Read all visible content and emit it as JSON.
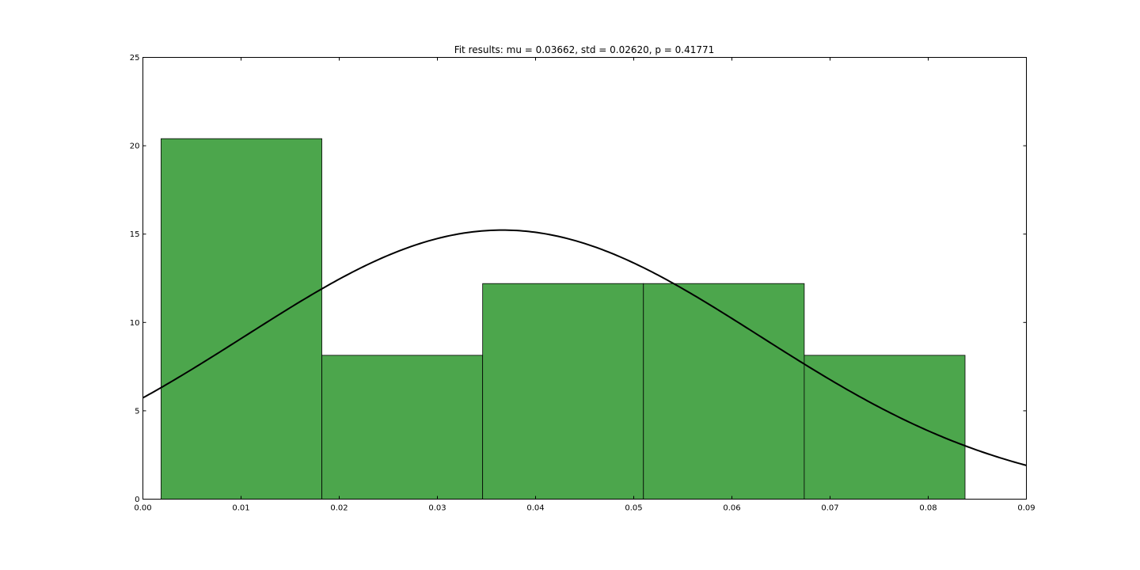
{
  "chart_data": {
    "type": "bar",
    "title": "Fit results: mu = 0.03662,  std = 0.02620, p = 0.41771",
    "xlabel": "",
    "ylabel": "",
    "xlim": [
      0.0,
      0.09
    ],
    "ylim": [
      0,
      25
    ],
    "x_ticks": [
      "0.00",
      "0.01",
      "0.02",
      "0.03",
      "0.04",
      "0.05",
      "0.06",
      "0.07",
      "0.08",
      "0.09"
    ],
    "y_ticks": [
      "0",
      "5",
      "10",
      "15",
      "20",
      "25"
    ],
    "grid": false,
    "bin_edges": [
      0.00185,
      0.01823,
      0.03461,
      0.05099,
      0.06737,
      0.08375
    ],
    "values": [
      20.4,
      8.14,
      12.2,
      12.2,
      8.14
    ],
    "bar_color": "#4ca64c",
    "fit_curve": {
      "type": "normal_pdf",
      "mu": 0.03662,
      "std": 0.0262,
      "color": "#000000"
    }
  }
}
